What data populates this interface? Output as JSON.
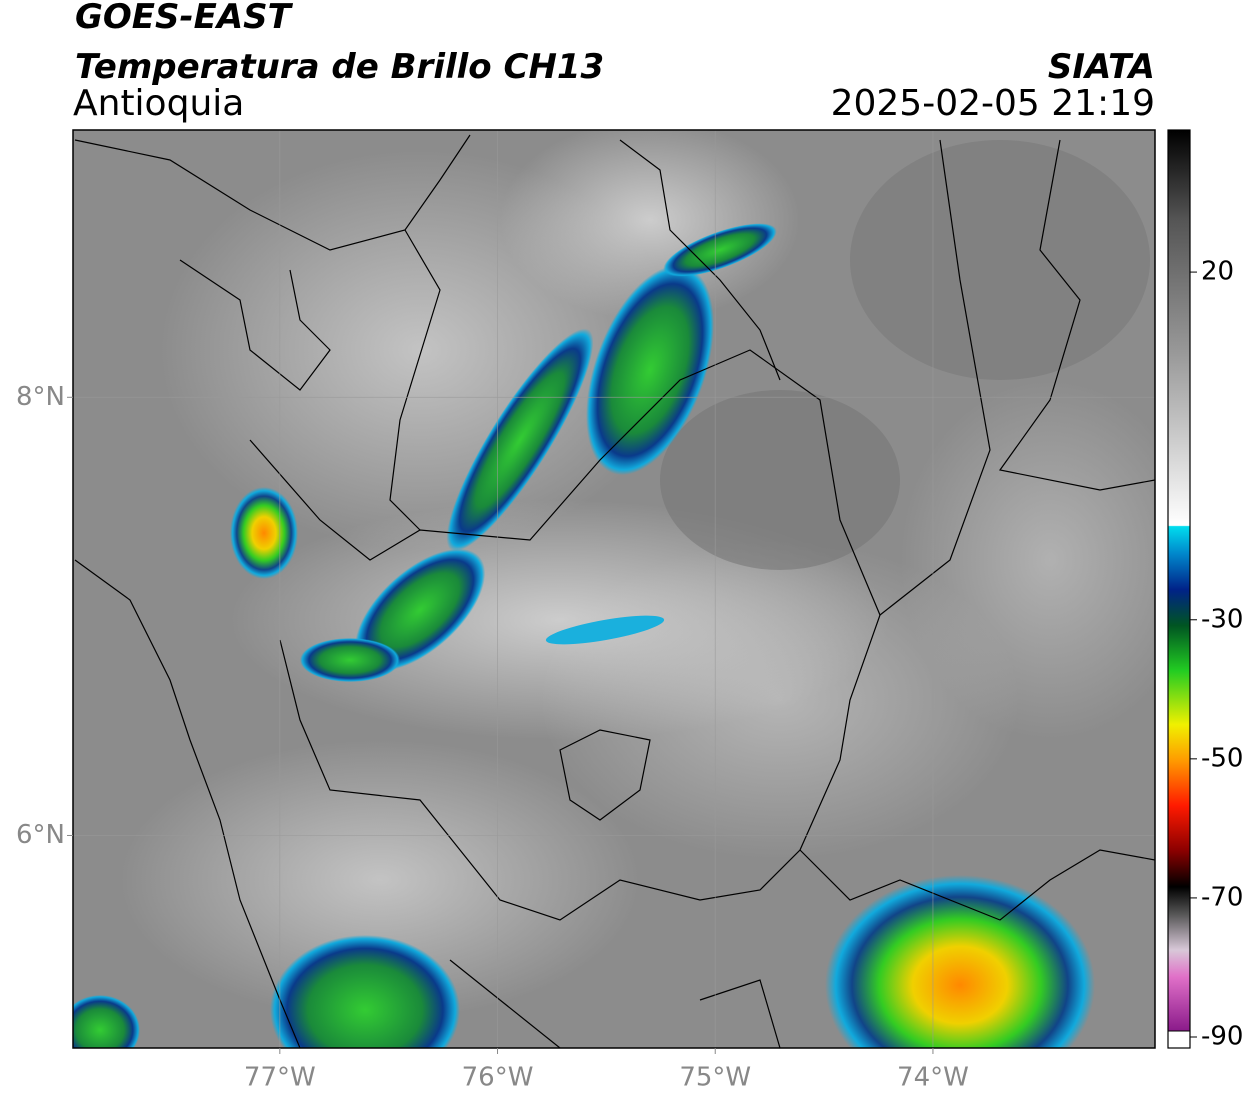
{
  "header": {
    "title": "GOES-EAST",
    "subtitle": "Temperatura de Brillo CH13",
    "region": "Antioquia",
    "source": "SIATA",
    "datetime": "2025-02-05 21:19"
  },
  "map": {
    "xlim": [
      -77.95,
      -72.98
    ],
    "ylim": [
      5.03,
      9.22
    ],
    "xticks": [
      {
        "value": -77,
        "label": "77°W"
      },
      {
        "value": -76,
        "label": "76°W"
      },
      {
        "value": -75,
        "label": "75°W"
      },
      {
        "value": -74,
        "label": "74°W"
      }
    ],
    "yticks": [
      {
        "value": 8,
        "label": "8°N"
      },
      {
        "value": 6,
        "label": "6°N"
      }
    ]
  },
  "colorbar": {
    "lim": [
      -90,
      40
    ],
    "ticks": [
      20,
      -30,
      -50,
      -70,
      -90
    ]
  }
}
